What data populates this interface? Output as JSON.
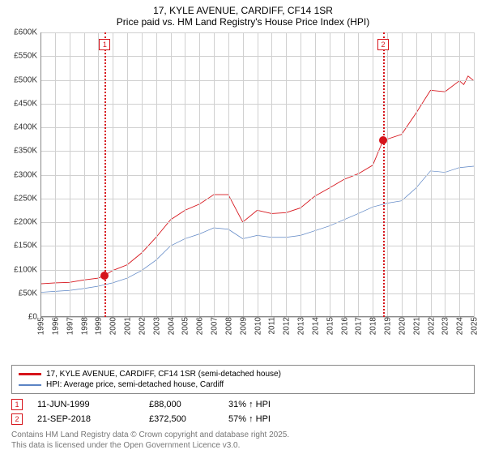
{
  "title": {
    "line1": "17, KYLE AVENUE, CARDIFF, CF14 1SR",
    "line2": "Price paid vs. HM Land Registry's House Price Index (HPI)"
  },
  "chart": {
    "type": "line",
    "background_color": "#ffffff",
    "grid_color": "#d0d0d0",
    "axis_color": "#888888",
    "label_fontsize": 10,
    "label_color": "#333333",
    "x": {
      "min": 1995,
      "max": 2025,
      "ticks": [
        1995,
        1996,
        1997,
        1998,
        1999,
        2000,
        2001,
        2002,
        2003,
        2004,
        2005,
        2006,
        2007,
        2008,
        2009,
        2010,
        2011,
        2012,
        2013,
        2014,
        2015,
        2016,
        2017,
        2018,
        2019,
        2020,
        2021,
        2022,
        2023,
        2024,
        2025
      ]
    },
    "y": {
      "min": 0,
      "max": 600,
      "ticks": [
        0,
        50,
        100,
        150,
        200,
        250,
        300,
        350,
        400,
        450,
        500,
        550,
        600
      ],
      "prefix": "£",
      "suffix": "K"
    },
    "series": [
      {
        "name": "property",
        "label": "17, KYLE AVENUE, CARDIFF, CF14 1SR (semi-detached house)",
        "color": "#d6141b",
        "line_width": 2.5,
        "points": [
          [
            1995,
            70
          ],
          [
            1996,
            72
          ],
          [
            1997,
            73
          ],
          [
            1998,
            78
          ],
          [
            1999,
            82
          ],
          [
            1999.45,
            88
          ],
          [
            2000,
            98
          ],
          [
            2001,
            110
          ],
          [
            2002,
            135
          ],
          [
            2003,
            168
          ],
          [
            2004,
            205
          ],
          [
            2005,
            225
          ],
          [
            2006,
            238
          ],
          [
            2007,
            258
          ],
          [
            2008,
            258
          ],
          [
            2009,
            200
          ],
          [
            2010,
            225
          ],
          [
            2011,
            218
          ],
          [
            2012,
            220
          ],
          [
            2013,
            230
          ],
          [
            2014,
            255
          ],
          [
            2015,
            272
          ],
          [
            2016,
            290
          ],
          [
            2017,
            302
          ],
          [
            2018,
            320
          ],
          [
            2018.72,
            372.5
          ],
          [
            2019,
            375
          ],
          [
            2020,
            385
          ],
          [
            2021,
            430
          ],
          [
            2022,
            478
          ],
          [
            2023,
            475
          ],
          [
            2024,
            498
          ],
          [
            2024.3,
            490
          ],
          [
            2024.6,
            508
          ],
          [
            2025,
            498
          ]
        ]
      },
      {
        "name": "hpi",
        "label": "HPI: Average price, semi-detached house, Cardiff",
        "color": "#5b84c4",
        "line_width": 2,
        "points": [
          [
            1995,
            52
          ],
          [
            1996,
            54
          ],
          [
            1997,
            56
          ],
          [
            1998,
            60
          ],
          [
            1999,
            65
          ],
          [
            2000,
            72
          ],
          [
            2001,
            82
          ],
          [
            2002,
            98
          ],
          [
            2003,
            120
          ],
          [
            2004,
            150
          ],
          [
            2005,
            165
          ],
          [
            2006,
            175
          ],
          [
            2007,
            188
          ],
          [
            2008,
            185
          ],
          [
            2009,
            165
          ],
          [
            2010,
            172
          ],
          [
            2011,
            168
          ],
          [
            2012,
            168
          ],
          [
            2013,
            172
          ],
          [
            2014,
            182
          ],
          [
            2015,
            192
          ],
          [
            2016,
            205
          ],
          [
            2017,
            218
          ],
          [
            2018,
            232
          ],
          [
            2019,
            240
          ],
          [
            2020,
            245
          ],
          [
            2021,
            272
          ],
          [
            2022,
            308
          ],
          [
            2023,
            305
          ],
          [
            2024,
            315
          ],
          [
            2025,
            318
          ]
        ]
      }
    ],
    "markers": [
      {
        "id": "1",
        "x": 1999.45,
        "y": 88,
        "color": "#d6141b"
      },
      {
        "id": "2",
        "x": 2018.72,
        "y": 372.5,
        "color": "#d6141b"
      }
    ]
  },
  "sales": [
    {
      "marker_id": "1",
      "date": "11-JUN-1999",
      "price": "£88,000",
      "hpi": "31% ↑ HPI",
      "color": "#d6141b"
    },
    {
      "marker_id": "2",
      "date": "21-SEP-2018",
      "price": "£372,500",
      "hpi": "57% ↑ HPI",
      "color": "#d6141b"
    }
  ],
  "copyright": {
    "line1": "Contains HM Land Registry data © Crown copyright and database right 2025.",
    "line2": "This data is licensed under the Open Government Licence v3.0."
  }
}
